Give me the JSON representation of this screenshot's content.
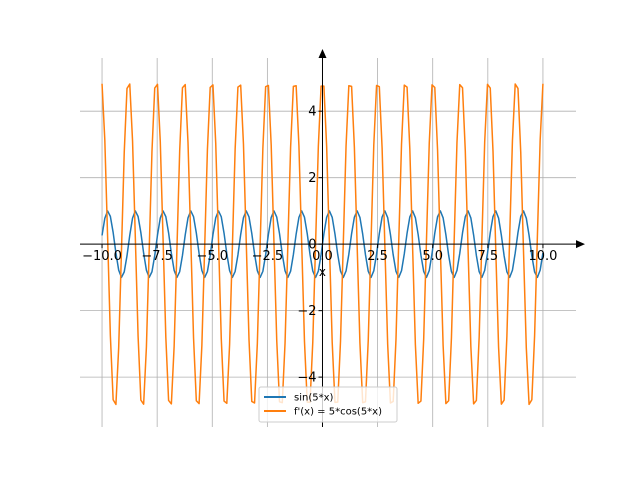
{
  "chart_data": {
    "type": "line",
    "title": "",
    "xlabel": "x",
    "ylabel": "",
    "xlim": [
      -11.0,
      11.5
    ],
    "ylim": [
      -5.5,
      5.6
    ],
    "x_ticks": [
      -10.0,
      -7.5,
      -5.0,
      -2.5,
      0.0,
      2.5,
      5.0,
      7.5,
      10.0
    ],
    "x_tick_labels": [
      "−10.0",
      "−7.5",
      "−5.0",
      "−2.5",
      "0.0",
      "2.5",
      "5.0",
      "7.5",
      "10.0"
    ],
    "y_ticks": [
      -4,
      -2,
      0,
      2,
      4
    ],
    "y_tick_labels": [
      "−4",
      "−2",
      "0",
      "2",
      "4"
    ],
    "grid": true,
    "legend_position": "bottom-center",
    "x_range": [
      -10.0,
      10.0
    ],
    "sample_count": 160,
    "series": [
      {
        "name": "sin(5*x)",
        "color": "#1f77b4"
      },
      {
        "name": "f'(x) = 5*cos(5*x)",
        "color": "#ff7f0e"
      }
    ]
  }
}
